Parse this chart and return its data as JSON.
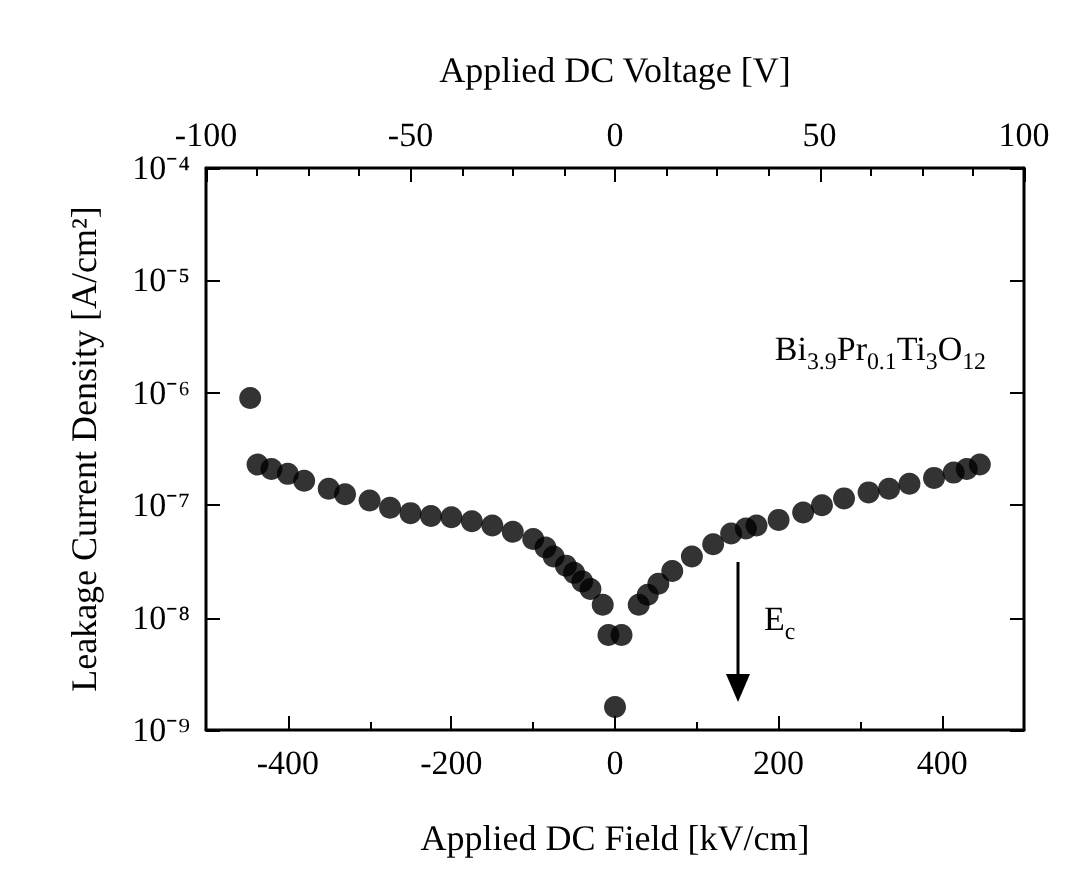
{
  "chart_data": {
    "type": "scatter",
    "xlabel": "Applied DC Field [kV/cm]",
    "x2label": "Applied DC Voltage [V]",
    "ylabel": "Leakage Current Density [A/cm²]",
    "xlim": [
      -500,
      500
    ],
    "xticks": [
      -400,
      -200,
      0,
      200,
      400
    ],
    "x2lim": [
      -100,
      100
    ],
    "x2ticks": [
      -100,
      -50,
      0,
      50,
      100
    ],
    "ylim": [
      1e-09,
      0.0001
    ],
    "yticks": [
      {
        "value": 1e-09,
        "label": "10⁻⁹"
      },
      {
        "value": 1e-08,
        "label": "10⁻⁸"
      },
      {
        "value": 1e-07,
        "label": "10⁻⁷"
      },
      {
        "value": 1e-06,
        "label": "10⁻⁶"
      },
      {
        "value": 1e-05,
        "label": "10⁻⁵"
      },
      {
        "value": 0.0001,
        "label": "10⁻⁴"
      }
    ],
    "log": "y",
    "grid": false,
    "marker": "circle",
    "series": [
      {
        "color": "#000000",
        "x": [
          -446,
          -437,
          -420,
          -400,
          -380,
          -350,
          -330,
          -300,
          -275,
          -250,
          -225,
          -200,
          -175,
          -150,
          -125,
          -100,
          -85,
          -75,
          -60,
          -50,
          -40,
          -30,
          -15,
          -8,
          0,
          8,
          29,
          40,
          53,
          70,
          94,
          120,
          142,
          160,
          173,
          200,
          230,
          253,
          280,
          310,
          335,
          360,
          390,
          414,
          430,
          446
        ],
        "values": [
          9e-07,
          2.3e-07,
          2.1e-07,
          1.9e-07,
          1.65e-07,
          1.4e-07,
          1.25e-07,
          1.1e-07,
          9.5e-08,
          8.5e-08,
          8e-08,
          7.8e-08,
          7.2e-08,
          6.6e-08,
          5.8e-08,
          5e-08,
          4.2e-08,
          3.5e-08,
          2.9e-08,
          2.5e-08,
          2.1e-08,
          1.8e-08,
          1.3e-08,
          7e-09,
          1.6e-09,
          7e-09,
          1.3e-08,
          1.6e-08,
          2e-08,
          2.6e-08,
          3.5e-08,
          4.5e-08,
          5.6e-08,
          6.2e-08,
          6.6e-08,
          7.4e-08,
          8.6e-08,
          1e-07,
          1.15e-07,
          1.3e-07,
          1.4e-07,
          1.55e-07,
          1.75e-07,
          1.95e-07,
          2.1e-07,
          2.3e-07
        ]
      }
    ],
    "annotations": [
      "Bi$_{3.9}$Pr$_{0.1}$Ti$_{3}$O$_{12}$",
      "E$_{c}$"
    ]
  }
}
